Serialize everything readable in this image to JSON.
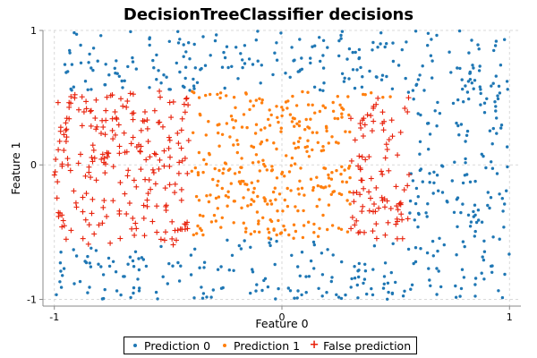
{
  "chart_data": {
    "type": "scatter",
    "title": "DecisionTreeClassifier decisions",
    "xlabel": "Feature 0",
    "ylabel": "Feature 1",
    "xlim": [
      -1.05,
      1.05
    ],
    "ylim": [
      -1.05,
      1.0
    ],
    "xticks": [
      -1,
      0,
      1
    ],
    "yticks": [
      -1,
      0,
      1
    ],
    "x_tick_labels": [
      "-1",
      "0",
      "1"
    ],
    "y_tick_labels": [
      "-1",
      "0",
      "1"
    ],
    "grid": true,
    "legend_position": "bottom-center",
    "series": [
      {
        "name": "Prediction 0",
        "color": "#1f77b4",
        "marker": "dot",
        "description_of_region": "points with |Feature 0| > ~0.55 or |Feature 1| > ~0.55 (outside center region)"
      },
      {
        "name": "Prediction 1",
        "color": "#ff7f0e",
        "marker": "dot",
        "description_of_region": "points inside the central region roughly x in [-0.5, 0.55], y in [-0.55, 0.55]"
      },
      {
        "name": "False prediction",
        "color": "#e8200a",
        "marker": "plus",
        "description_of_region": "misclassified points: left band x in [-1, -0.4], y in [-0.6, 0.55], and right band x in [0.3, 0.55], y in [-0.55, 0.5]"
      }
    ],
    "regions": {
      "center_box": {
        "x": [
          -0.5,
          0.55
        ],
        "y": [
          -0.55,
          0.55
        ]
      },
      "false_left": {
        "x": [
          -1.0,
          -0.4
        ],
        "y": [
          -0.6,
          0.55
        ]
      },
      "false_right": {
        "x": [
          0.3,
          0.56
        ],
        "y": [
          -0.55,
          0.5
        ]
      },
      "blue_right_band": {
        "x": [
          0.56,
          1.0
        ],
        "y": [
          -0.55,
          0.55
        ]
      }
    },
    "point_counts": {
      "Prediction 0": 560,
      "Prediction 1": 330,
      "False prediction": 330
    }
  },
  "colors": {
    "prediction0": "#1f77b4",
    "prediction1": "#ff7f0e",
    "false_prediction": "#e8200a",
    "grid": "#d9d9d9",
    "axis": "#8a8a8a"
  },
  "legend": {
    "items": [
      {
        "label": "Prediction 0",
        "symbol": "•"
      },
      {
        "label": "Prediction 1",
        "symbol": "•"
      },
      {
        "label": "False prediction",
        "symbol": "+"
      }
    ]
  }
}
